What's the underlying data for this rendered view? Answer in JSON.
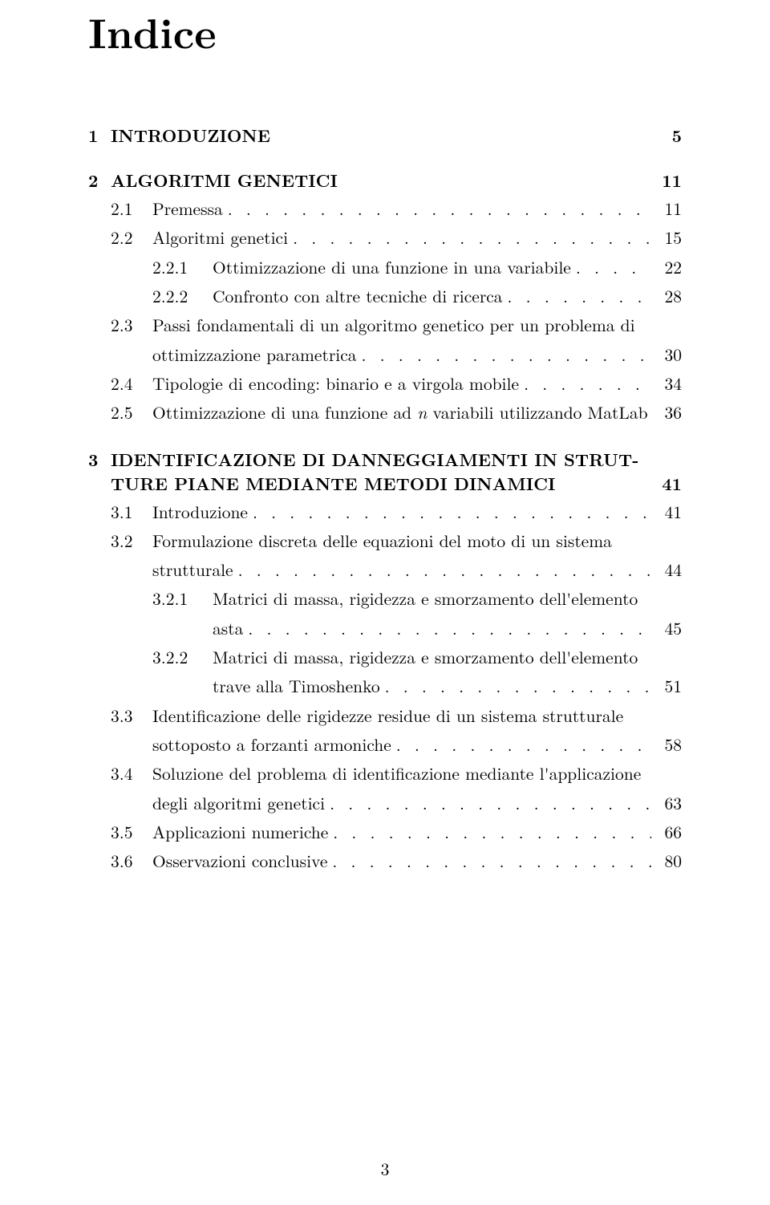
{
  "title": "Indice",
  "page_number": "3",
  "typography": {
    "title_fontsize": 52,
    "body_fontsize": 21.5,
    "text_color": "#000000",
    "background_color": "#ffffff"
  },
  "chapters": [
    {
      "num": "1",
      "label": "INTRODUZIONE",
      "page": "5",
      "sections": []
    },
    {
      "num": "2",
      "label": "ALGORITMI GENETICI",
      "page": "11",
      "sections": [
        {
          "num": "2.1",
          "text": "Premessa",
          "page": "11",
          "wrap": []
        },
        {
          "num": "2.2",
          "text": "Algoritmi genetici",
          "page": "15",
          "wrap": [],
          "subs": [
            {
              "num": "2.2.1",
              "text": "Ottimizzazione di una funzione in una variabile",
              "page": "22",
              "wrap": []
            },
            {
              "num": "2.2.2",
              "text": "Confronto con altre tecniche di ricerca",
              "page": "28",
              "wrap": []
            }
          ]
        },
        {
          "num": "2.3",
          "text": "Passi fondamentali di un algoritmo genetico per un problema di",
          "page": "30",
          "wrap": [
            "ottimizzazione parametrica"
          ]
        },
        {
          "num": "2.4",
          "text": "Tipologie di encoding: binario e a virgola mobile",
          "page": "34",
          "wrap": []
        },
        {
          "num": "2.5",
          "text_html": "Ottimizzazione di una funzione ad <span class=\"italic\">n</span> variabili utilizzando MatLab",
          "page": "36",
          "wrap": [],
          "nodots": true
        }
      ]
    },
    {
      "num": "3",
      "label_line1": "IDENTIFICAZIONE DI DANNEGGIAMENTI IN STRUT-",
      "label_line2": "TURE PIANE MEDIANTE METODI DINAMICI",
      "page": "41",
      "multiline": true,
      "sections": [
        {
          "num": "3.1",
          "text": "Introduzione",
          "page": "41",
          "wrap": []
        },
        {
          "num": "3.2",
          "text": "Formulazione discreta delle equazioni del moto di un sistema",
          "page": "44",
          "wrap": [
            "strutturale"
          ],
          "subs": [
            {
              "num": "3.2.1",
              "text": "Matrici di massa, rigidezza e smorzamento dell'elemento",
              "page": "45",
              "wrap": [
                "asta"
              ]
            },
            {
              "num": "3.2.2",
              "text": "Matrici di massa, rigidezza e smorzamento dell'elemento",
              "page": "51",
              "wrap": [
                "trave alla Timoshenko"
              ]
            }
          ]
        },
        {
          "num": "3.3",
          "text": "Identificazione delle rigidezze residue di un sistema strutturale",
          "page": "58",
          "wrap": [
            "sottoposto a forzanti armoniche"
          ]
        },
        {
          "num": "3.4",
          "text": "Soluzione del problema di identificazione mediante l'applicazione",
          "page": "63",
          "wrap": [
            "degli algoritmi genetici"
          ]
        },
        {
          "num": "3.5",
          "text": "Applicazioni numeriche",
          "page": "66",
          "wrap": []
        },
        {
          "num": "3.6",
          "text": "Osservazioni conclusive",
          "page": "80",
          "wrap": []
        }
      ]
    }
  ]
}
